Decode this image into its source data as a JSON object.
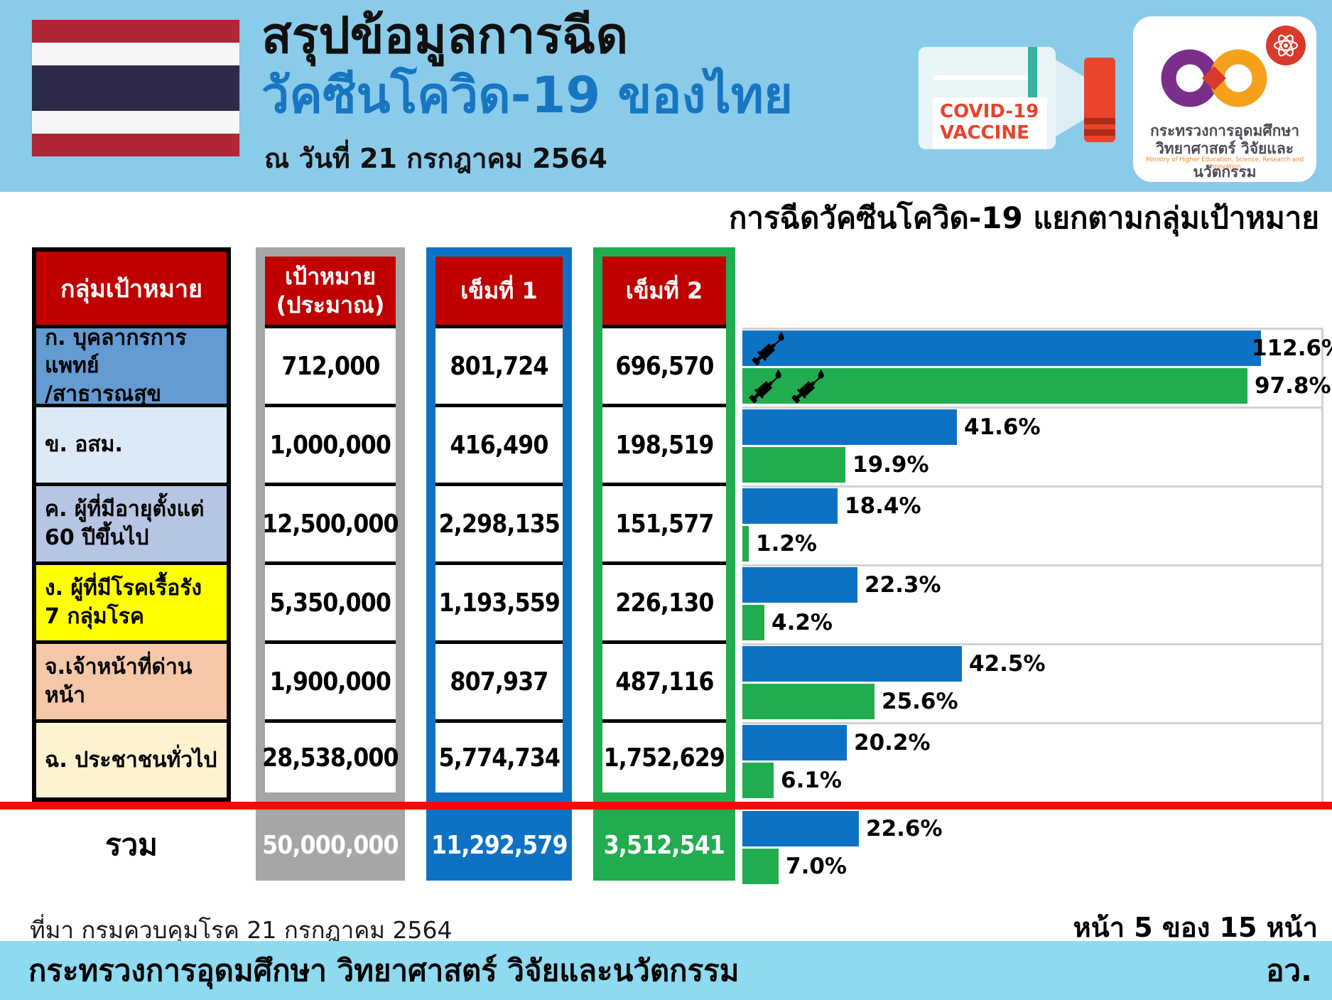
{
  "header": {
    "title_line1": "สรุปข้อมูลการฉีด",
    "title_line2": "วัคซีนโควิด-19 ของไทย",
    "date_line": "ณ วันที่ 21 กรกฎาคม 2564",
    "vial": {
      "line1": "COVID-19",
      "line2": "VACCINE"
    },
    "logo": {
      "thai_line1": "กระทรวงการอุดมศึกษา",
      "thai_line2": "วิทยาศาสตร์ วิจัยและนวัตกรรม",
      "english_line": "Ministry of Higher Education, Science, Research and Innovation"
    }
  },
  "chart_title": "การฉีดวัคซีนโควิด-19 แยกตามกลุ่มเป้าหมาย",
  "table": {
    "headers": [
      "กลุ่มเป้าหมาย",
      "เป้าหมาย\n(ประมาณ)",
      "เข็มที่ 1",
      "เข็มที่ 2"
    ],
    "rows": [
      {
        "label_lines": [
          "ก. บุคลากรการแพทย์",
          "/สาธารณสุข"
        ],
        "bg": "#639BD2",
        "target": "712,000",
        "dose1": "801,724",
        "dose2": "696,570",
        "pct1": 112.6,
        "pct2": 97.8
      },
      {
        "label_lines": [
          "ข. อสม."
        ],
        "bg": "#DCE9F6",
        "target": "1,000,000",
        "dose1": "416,490",
        "dose2": "198,519",
        "pct1": 41.6,
        "pct2": 19.9
      },
      {
        "label_lines": [
          "ค. ผู้ที่มีอายุตั้งแต่",
          "60 ปีขึ้นไป"
        ],
        "bg": "#B7C5E4",
        "target": "12,500,000",
        "dose1": "2,298,135",
        "dose2": "151,577",
        "pct1": 18.4,
        "pct2": 1.2
      },
      {
        "label_lines": [
          "ง. ผู้ที่มีโรคเรื้อรัง",
          "7 กลุ่มโรค"
        ],
        "bg": "#FFFF00",
        "target": "5,350,000",
        "dose1": "1,193,559",
        "dose2": "226,130",
        "pct1": 22.3,
        "pct2": 4.2
      },
      {
        "label_lines": [
          "จ.เจ้าหน้าที่ด่านหน้า"
        ],
        "bg": "#F4C7A8",
        "target": "1,900,000",
        "dose1": "807,937",
        "dose2": "487,116",
        "pct1": 42.5,
        "pct2": 25.6
      },
      {
        "label_lines": [
          "ฉ. ประชาชนทั่วไป"
        ],
        "bg": "#FDF3D1",
        "target": "28,538,000",
        "dose1": "5,774,734",
        "dose2": "1,752,629",
        "pct1": 20.2,
        "pct2": 6.1
      }
    ]
  },
  "total": {
    "label": "รวม",
    "target": "50,000,000",
    "dose1": "11,292,579",
    "dose2": "3,512,541",
    "pct1": 22.6,
    "pct2": 7.0
  },
  "chart_data": {
    "type": "bar",
    "orientation": "horizontal",
    "title": "การฉีดวัคซีนโควิด-19 แยกตามกลุ่มเป้าหมาย",
    "categories": [
      "ก. บุคลากรการแพทย์/สาธารณสุข",
      "ข. อสม.",
      "ค. ผู้ที่มีอายุตั้งแต่ 60 ปีขึ้นไป",
      "ง. ผู้ที่มีโรคเรื้อรัง 7 กลุ่มโรค",
      "จ.เจ้าหน้าที่ด่านหน้า",
      "ฉ. ประชาชนทั่วไป",
      "รวม"
    ],
    "series": [
      {
        "name": "เข็มที่ 1",
        "color": "#0E72C4",
        "values": [
          112.6,
          41.6,
          18.4,
          22.3,
          42.5,
          20.2,
          22.6
        ]
      },
      {
        "name": "เข็มที่ 2",
        "color": "#21AC50",
        "values": [
          97.8,
          19.9,
          1.2,
          4.2,
          25.6,
          6.1,
          7.0
        ]
      }
    ],
    "unit": "%",
    "xlim": [
      0,
      100.4
    ],
    "value_labels": true,
    "legend_position": "none",
    "grid": false
  },
  "footer": {
    "source": "ที่มา กรมควบคุมโรค 21 กรกฎาคม 2564",
    "page": "หน้า 5 ของ 15 หน้า",
    "ministry": "กระทรวงการอุดมศึกษา วิทยาศาสตร์ วิจัยและนวัตกรรม",
    "abbrev": "อว."
  },
  "colors": {
    "band": "#8BCBEA",
    "footer_band": "#8EDAF0",
    "header_red": "#C00000",
    "blue": "#0E72C4",
    "green": "#21AC50",
    "frame_gray": "#A6A6A6",
    "title_blue": "#1776C1",
    "flag_red": "#B02638",
    "flag_navy": "#2D2A4A",
    "red_line": "#F90606",
    "separator_gray": "#D2D2D2"
  }
}
